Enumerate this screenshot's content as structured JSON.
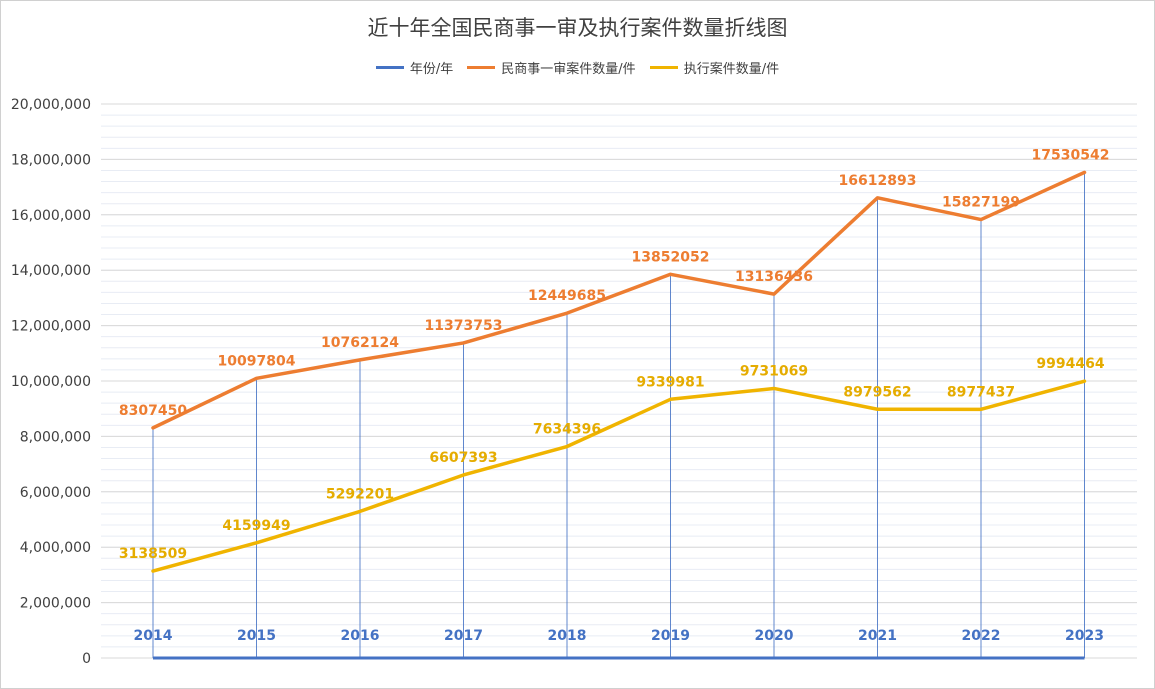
{
  "chart_data": {
    "type": "line",
    "title": "近十年全国民商事一审及执行案件数量折线图",
    "categories": [
      "2014",
      "2015",
      "2016",
      "2017",
      "2018",
      "2019",
      "2020",
      "2021",
      "2022",
      "2023"
    ],
    "ylim": [
      0,
      20000000
    ],
    "yticks": [
      0,
      2000000,
      4000000,
      6000000,
      8000000,
      10000000,
      12000000,
      14000000,
      16000000,
      18000000,
      20000000
    ],
    "ytick_labels": [
      "0",
      "2,000,000",
      "4,000,000",
      "6,000,000",
      "8,000,000",
      "10,000,000",
      "12,000,000",
      "14,000,000",
      "16,000,000",
      "18,000,000",
      "20,000,000"
    ],
    "grid": true,
    "legend_position": "top",
    "series": [
      {
        "name": "年份/年",
        "color": "#4472c4",
        "values": [
          2014,
          2015,
          2016,
          2017,
          2018,
          2019,
          2020,
          2021,
          2022,
          2023
        ]
      },
      {
        "name": "民商事一审案件数量/件",
        "color": "#ed7d31",
        "values": [
          8307450,
          10097804,
          10762124,
          11373753,
          12449685,
          13852052,
          13136436,
          16612893,
          15827199,
          17530542
        ]
      },
      {
        "name": "执行案件数量/件",
        "color": "#f0b400",
        "values": [
          3138509,
          4159949,
          5292201,
          6607393,
          7634396,
          9339981,
          9731069,
          8979562,
          8977437,
          9994464
        ]
      }
    ]
  }
}
